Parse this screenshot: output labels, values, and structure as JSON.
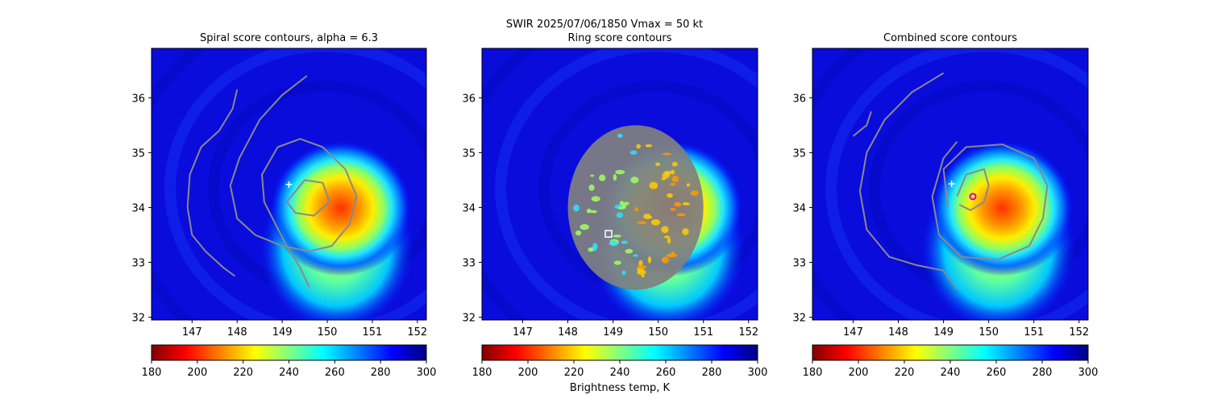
{
  "figure": {
    "suptitle": "SWIR  2025/07/06/1850    Vmax = 50 kt",
    "colorbar_label": "Brightness temp, K",
    "colormap": [
      "#800000",
      "#ff0000",
      "#ff8000",
      "#ffff00",
      "#80ff80",
      "#00ffff",
      "#0080ff",
      "#0000ff",
      "#000080"
    ]
  },
  "chart_data": [
    {
      "type": "heatmap",
      "title": "Spiral score contours, alpha =  6.3",
      "xlim": [
        146.1,
        152.2
      ],
      "ylim": [
        31.95,
        36.9
      ],
      "xticks": [
        147,
        148,
        149,
        150,
        151,
        152
      ],
      "yticks": [
        32,
        33,
        34,
        35,
        36
      ],
      "colorbar": {
        "range": [
          180,
          300
        ],
        "ticks": [
          180,
          200,
          220,
          240,
          260,
          280,
          300
        ]
      },
      "contours": [
        [
          [
            148,
            36.15
          ],
          [
            147.9,
            35.8
          ],
          [
            147.6,
            35.4
          ],
          [
            147.2,
            35.1
          ],
          [
            146.95,
            34.6
          ],
          [
            146.9,
            34.0
          ],
          [
            147.0,
            33.5
          ],
          [
            147.3,
            33.2
          ],
          [
            147.7,
            32.9
          ],
          [
            147.95,
            32.75
          ]
        ],
        [
          [
            149.55,
            36.4
          ],
          [
            149.0,
            36.05
          ],
          [
            148.5,
            35.6
          ],
          [
            148.05,
            34.9
          ],
          [
            147.85,
            34.4
          ],
          [
            148.0,
            33.8
          ],
          [
            148.4,
            33.5
          ],
          [
            149.0,
            33.3
          ],
          [
            149.6,
            33.2
          ],
          [
            150.1,
            33.3
          ],
          [
            150.5,
            33.7
          ],
          [
            150.65,
            34.2
          ],
          [
            150.4,
            34.7
          ],
          [
            149.9,
            35.1
          ],
          [
            149.4,
            35.25
          ],
          [
            148.9,
            35.1
          ],
          [
            148.55,
            34.6
          ],
          [
            148.6,
            34.1
          ],
          [
            148.85,
            33.7
          ],
          [
            149.1,
            33.3
          ],
          [
            149.4,
            32.9
          ],
          [
            149.6,
            32.55
          ]
        ],
        [
          [
            149.1,
            34.1
          ],
          [
            149.5,
            34.5
          ],
          [
            149.9,
            34.45
          ],
          [
            150.05,
            34.1
          ],
          [
            149.7,
            33.85
          ],
          [
            149.3,
            33.9
          ],
          [
            149.1,
            34.1
          ]
        ]
      ],
      "markers": [
        {
          "shape": "plus",
          "x": 149.15,
          "y": 34.42,
          "color": "#ffffff"
        }
      ]
    },
    {
      "type": "heatmap",
      "title": "Ring score contours",
      "xlim": [
        146.1,
        152.2
      ],
      "ylim": [
        31.95,
        36.9
      ],
      "xticks": [
        147,
        148,
        149,
        150,
        151,
        152
      ],
      "yticks": [
        32,
        33,
        34,
        35,
        36
      ],
      "colorbar": {
        "range": [
          180,
          300
        ],
        "ticks": [
          180,
          200,
          220,
          240,
          260,
          280,
          300
        ]
      },
      "ring_region": {
        "center": [
          149.5,
          34.0
        ],
        "radius_x": 1.5,
        "radius_y": 1.5
      },
      "markers": [
        {
          "shape": "square",
          "x": 148.9,
          "y": 33.52,
          "color": "#ffffff"
        }
      ]
    },
    {
      "type": "heatmap",
      "title": "Combined score contours",
      "xlim": [
        146.1,
        152.2
      ],
      "ylim": [
        31.95,
        36.9
      ],
      "xticks": [
        147,
        148,
        149,
        150,
        151,
        152
      ],
      "yticks": [
        32,
        33,
        34,
        35,
        36
      ],
      "colorbar": {
        "range": [
          180,
          300
        ],
        "ticks": [
          180,
          200,
          220,
          240,
          260,
          280,
          300
        ]
      },
      "contours": [
        [
          [
            147.4,
            35.75
          ],
          [
            147.3,
            35.5
          ],
          [
            147.0,
            35.3
          ]
        ],
        [
          [
            149.0,
            36.45
          ],
          [
            148.3,
            36.1
          ],
          [
            147.7,
            35.6
          ],
          [
            147.3,
            35.0
          ],
          [
            147.15,
            34.3
          ],
          [
            147.3,
            33.6
          ],
          [
            147.8,
            33.1
          ],
          [
            148.4,
            32.95
          ],
          [
            149.0,
            32.85
          ],
          [
            149.3,
            32.5
          ]
        ],
        [
          [
            149.1,
            34.0
          ],
          [
            149.0,
            34.7
          ],
          [
            149.5,
            35.1
          ],
          [
            150.3,
            35.15
          ],
          [
            151.0,
            34.9
          ],
          [
            151.3,
            34.4
          ],
          [
            151.2,
            33.8
          ],
          [
            150.9,
            33.3
          ],
          [
            150.2,
            33.05
          ],
          [
            149.4,
            33.1
          ],
          [
            148.9,
            33.5
          ],
          [
            148.75,
            34.2
          ],
          [
            149.0,
            34.9
          ],
          [
            149.3,
            35.2
          ]
        ],
        [
          [
            149.3,
            34.2
          ],
          [
            149.5,
            34.6
          ],
          [
            149.9,
            34.7
          ],
          [
            150.0,
            34.4
          ],
          [
            149.9,
            34.1
          ],
          [
            149.6,
            33.95
          ],
          [
            149.35,
            34.05
          ]
        ]
      ],
      "markers": [
        {
          "shape": "plus",
          "x": 149.18,
          "y": 34.43,
          "color": "#ffffff"
        },
        {
          "shape": "circle",
          "x": 149.65,
          "y": 34.2,
          "color": "#cc00cc"
        }
      ]
    }
  ]
}
